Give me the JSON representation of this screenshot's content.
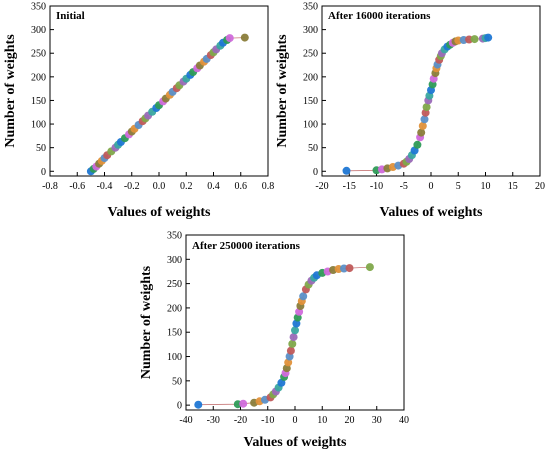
{
  "chart_data": [
    {
      "type": "scatter",
      "title": "Initial",
      "xlabel": "Values of weights",
      "ylabel": "Number of weights",
      "xlim": [
        -0.8,
        0.8
      ],
      "ylim": [
        -10,
        350
      ],
      "xticks": [
        "-0.8",
        "-0.6",
        "-0.4",
        "-0.2",
        "0.0",
        "0.2",
        "0.4",
        "0.6",
        "0.8"
      ],
      "xtick_values": [
        -0.8,
        -0.6,
        -0.4,
        -0.2,
        0.0,
        0.2,
        0.4,
        0.6,
        0.8
      ],
      "yticks": [
        "0",
        "50",
        "100",
        "150",
        "200",
        "250",
        "300",
        "350"
      ],
      "ytick_values": [
        0,
        50,
        100,
        150,
        200,
        250,
        300,
        350
      ],
      "series": [
        {
          "x": [
            -0.5,
            -0.48,
            -0.46,
            -0.44,
            -0.42,
            -0.4,
            -0.38,
            -0.35,
            -0.32,
            -0.3,
            -0.28,
            -0.25,
            -0.22,
            -0.2,
            -0.18,
            -0.15,
            -0.12,
            -0.1,
            -0.08,
            -0.05,
            -0.02,
            0.0,
            0.03,
            0.05,
            0.08,
            0.1,
            0.13,
            0.15,
            0.18,
            0.2,
            0.23,
            0.25,
            0.28,
            0.3,
            0.33,
            0.35,
            0.38,
            0.4,
            0.42,
            0.45,
            0.47,
            0.5,
            0.52,
            0.63
          ],
          "y": [
            0,
            5,
            10,
            16,
            22,
            28,
            34,
            42,
            50,
            56,
            62,
            70,
            78,
            84,
            90,
            98,
            106,
            112,
            118,
            126,
            134,
            140,
            148,
            154,
            162,
            168,
            176,
            182,
            190,
            196,
            204,
            210,
            218,
            224,
            232,
            238,
            246,
            252,
            258,
            266,
            272,
            278,
            282,
            283
          ]
        }
      ]
    },
    {
      "type": "scatter",
      "title": "After 16000 iterations",
      "xlabel": "Values of weights",
      "ylabel": "Number of weights",
      "xlim": [
        -20,
        20
      ],
      "ylim": [
        -10,
        350
      ],
      "xticks": [
        "-20",
        "-15",
        "-10",
        "-5",
        "0",
        "5",
        "10",
        "15",
        "20"
      ],
      "xtick_values": [
        -20,
        -15,
        -10,
        -5,
        0,
        5,
        10,
        15,
        20
      ],
      "yticks": [
        "0",
        "50",
        "100",
        "150",
        "200",
        "250",
        "300",
        "350"
      ],
      "ytick_values": [
        0,
        50,
        100,
        150,
        200,
        250,
        300,
        350
      ],
      "series": [
        {
          "x": [
            -15.5,
            -10,
            -9,
            -8,
            -7,
            -6,
            -5,
            -4.5,
            -4,
            -3.5,
            -3,
            -2.5,
            -2,
            -1.8,
            -1.5,
            -1.2,
            -1,
            -0.8,
            -0.5,
            -0.3,
            0,
            0.3,
            0.5,
            0.8,
            1,
            1.2,
            1.5,
            1.8,
            2,
            2.5,
            3,
            3.5,
            4,
            4.5,
            5,
            6,
            7,
            8,
            9.5,
            10,
            10.5
          ],
          "y": [
            1,
            2,
            4,
            6,
            9,
            12,
            16,
            20,
            26,
            34,
            44,
            56,
            72,
            82,
            96,
            110,
            124,
            136,
            150,
            160,
            172,
            184,
            196,
            208,
            218,
            226,
            236,
            244,
            250,
            258,
            264,
            268,
            272,
            275,
            277,
            278,
            279,
            280,
            281,
            282,
            283
          ]
        }
      ]
    },
    {
      "type": "scatter",
      "title": "After 250000 iterations",
      "xlabel": "Values of weights",
      "ylabel": "Number of weights",
      "xlim": [
        -40,
        40
      ],
      "ylim": [
        -10,
        350
      ],
      "xticks": [
        "-40",
        "-30",
        "-20",
        "-10",
        "0",
        "10",
        "20",
        "30",
        "40"
      ],
      "xtick_values": [
        -40,
        -30,
        -20,
        -10,
        0,
        10,
        20,
        30,
        40
      ],
      "yticks": [
        "0",
        "50",
        "100",
        "150",
        "200",
        "250",
        "300",
        "350"
      ],
      "ytick_values": [
        0,
        50,
        100,
        150,
        200,
        250,
        300,
        350
      ],
      "series": [
        {
          "x": [
            -35.5,
            -21,
            -19,
            -15,
            -13,
            -11,
            -9,
            -8,
            -7,
            -6,
            -5,
            -4,
            -3.5,
            -3,
            -2.5,
            -2,
            -1.5,
            -1,
            -0.5,
            0,
            0.5,
            1,
            1.5,
            2,
            2.5,
            3,
            4,
            5,
            6,
            7,
            8,
            10,
            12,
            14,
            16,
            18,
            20,
            27.5
          ],
          "y": [
            1,
            2,
            3,
            5,
            8,
            11,
            16,
            22,
            28,
            36,
            46,
            58,
            66,
            76,
            88,
            100,
            112,
            126,
            140,
            154,
            168,
            180,
            192,
            204,
            214,
            224,
            238,
            248,
            256,
            262,
            267,
            272,
            275,
            278,
            280,
            281,
            282,
            284
          ]
        }
      ]
    }
  ],
  "colors": {
    "marker_palette": [
      "#1f77d4",
      "#2e9b57",
      "#d06adb",
      "#8a7d3a",
      "#e0913a",
      "#5b8fc7",
      "#c05a5a",
      "#7fa84a",
      "#9a6ab8",
      "#3aa8a0"
    ],
    "line": "#c87a7a"
  }
}
